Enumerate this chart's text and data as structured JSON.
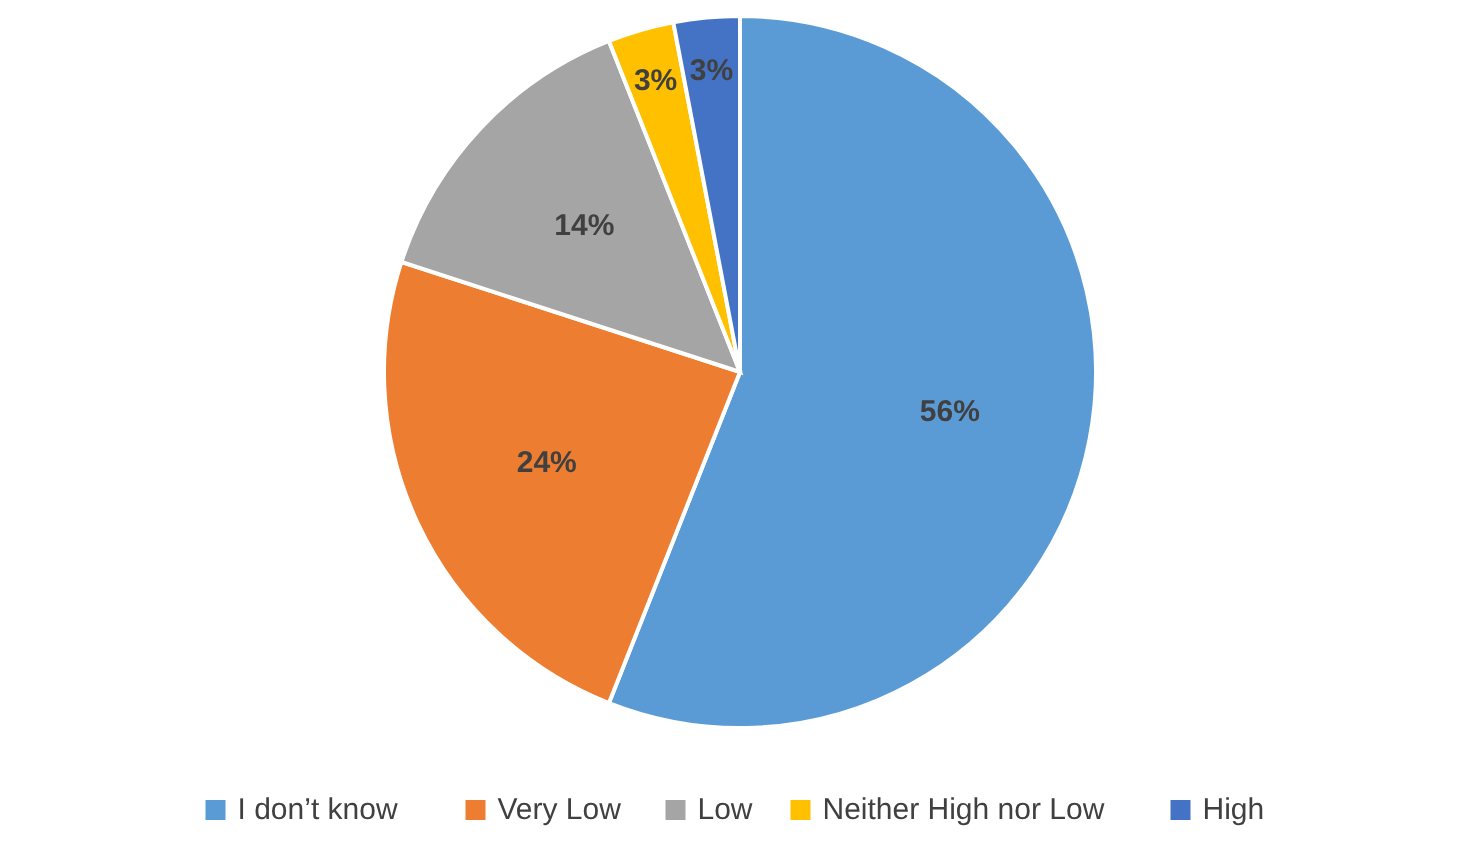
{
  "chart_data": {
    "type": "pie",
    "categories": [
      "I don’t know",
      "Very Low",
      "Low",
      "Neither High nor Low",
      "High"
    ],
    "values": [
      56,
      24,
      14,
      3,
      3
    ],
    "colors": [
      "#5b9bd5",
      "#ed7d31",
      "#a5a5a5",
      "#ffc000",
      "#4472c4"
    ],
    "value_labels": [
      "56%",
      "24%",
      "14%",
      "3%",
      "3%"
    ],
    "legend": "bottom"
  }
}
